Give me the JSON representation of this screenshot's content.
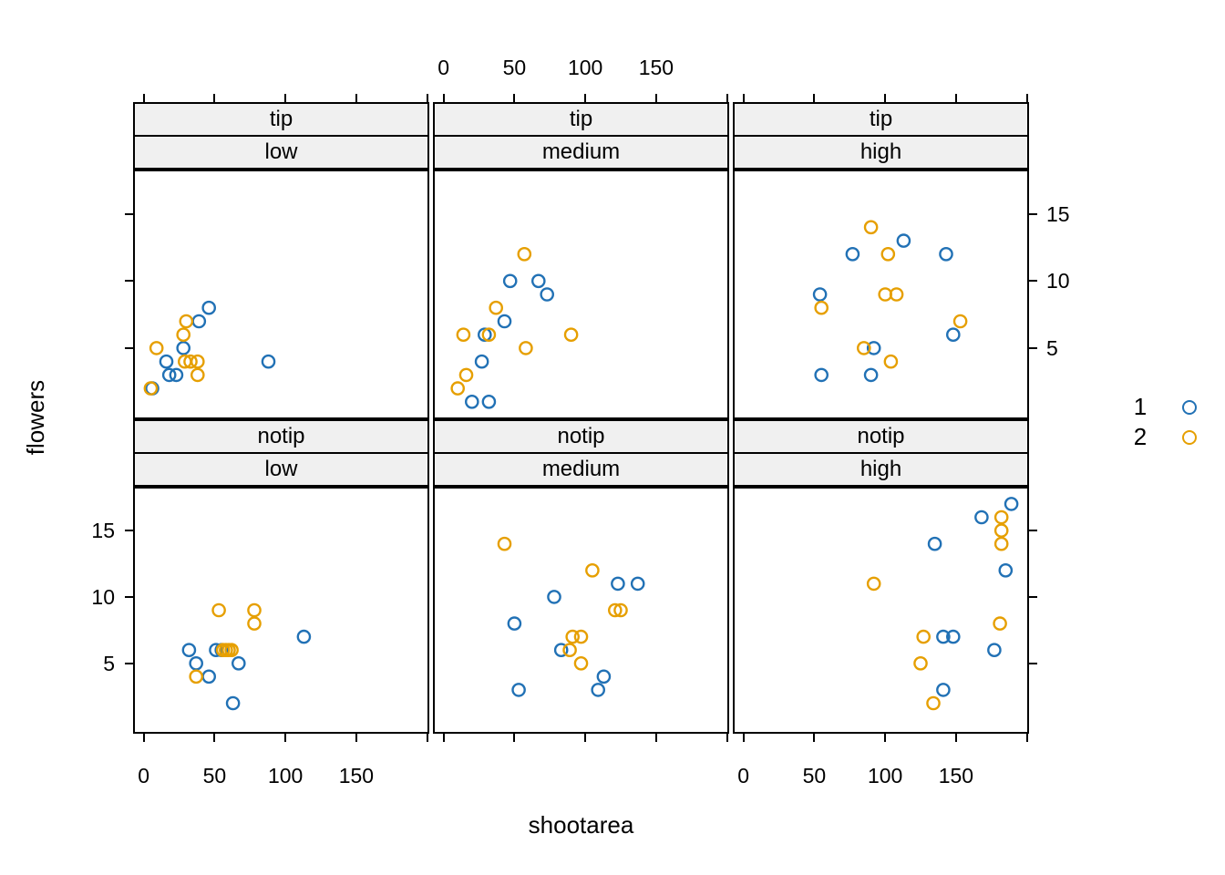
{
  "figure": {
    "background": "#ffffff"
  },
  "chart_data": {
    "type": "scatter",
    "title": "",
    "xlabel": "shootarea",
    "ylabel": "flowers",
    "xlim": [
      -7.5,
      201.5
    ],
    "ylim": [
      -0.3,
      18.3
    ],
    "x_ticks": [
      0,
      50,
      100,
      150,
      200
    ],
    "x_tick_labels": [
      "0",
      "50",
      "100",
      "150",
      ""
    ],
    "y_ticks": [
      5,
      10,
      15
    ],
    "y_tick_labels": [
      "5",
      "10",
      "15"
    ],
    "strip_bg": "#f0f0f0",
    "groups": [
      {
        "name": "1",
        "color": "#2171b5"
      },
      {
        "name": "2",
        "color": "#e69f00"
      }
    ],
    "legend": {
      "position": "right",
      "entries": [
        "1",
        "2"
      ]
    },
    "panels": [
      {
        "row": 0,
        "col": 0,
        "strip_labels": [
          "tip",
          "low"
        ],
        "series": [
          {
            "group": "1",
            "points": [
              [
                46,
                8
              ],
              [
                39,
                7
              ],
              [
                28,
                5
              ],
              [
                16,
                4
              ],
              [
                88,
                4
              ],
              [
                18,
                3
              ],
              [
                23,
                3
              ],
              [
                6,
                2
              ]
            ]
          },
          {
            "group": "2",
            "points": [
              [
                30,
                7
              ],
              [
                28,
                6
              ],
              [
                9,
                5
              ],
              [
                29,
                4
              ],
              [
                33,
                4
              ],
              [
                38,
                4
              ],
              [
                38,
                3
              ],
              [
                5,
                2
              ]
            ]
          }
        ]
      },
      {
        "row": 0,
        "col": 1,
        "strip_labels": [
          "tip",
          "medium"
        ],
        "series": [
          {
            "group": "1",
            "points": [
              [
                47,
                10
              ],
              [
                67,
                10
              ],
              [
                73,
                9
              ],
              [
                43,
                7
              ],
              [
                29,
                6
              ],
              [
                27,
                4
              ],
              [
                20,
                1
              ],
              [
                32,
                1
              ]
            ]
          },
          {
            "group": "2",
            "points": [
              [
                57,
                12
              ],
              [
                37,
                8
              ],
              [
                14,
                6
              ],
              [
                32,
                6
              ],
              [
                90,
                6
              ],
              [
                58,
                5
              ],
              [
                16,
                3
              ],
              [
                10,
                2
              ]
            ]
          }
        ]
      },
      {
        "row": 0,
        "col": 2,
        "strip_labels": [
          "tip",
          "high"
        ],
        "series": [
          {
            "group": "1",
            "points": [
              [
                113,
                13
              ],
              [
                77,
                12
              ],
              [
                143,
                12
              ],
              [
                54,
                9
              ],
              [
                148,
                6
              ],
              [
                92,
                5
              ],
              [
                55,
                3
              ],
              [
                90,
                3
              ]
            ]
          },
          {
            "group": "2",
            "points": [
              [
                90,
                14
              ],
              [
                102,
                12
              ],
              [
                100,
                9
              ],
              [
                108,
                9
              ],
              [
                55,
                8
              ],
              [
                153,
                7
              ],
              [
                85,
                5
              ],
              [
                104,
                4
              ]
            ]
          }
        ]
      },
      {
        "row": 1,
        "col": 0,
        "strip_labels": [
          "notip",
          "low"
        ],
        "series": [
          {
            "group": "1",
            "points": [
              [
                32,
                6
              ],
              [
                51,
                6
              ],
              [
                55,
                6
              ],
              [
                37,
                5
              ],
              [
                67,
                5
              ],
              [
                46,
                4
              ],
              [
                113,
                7
              ],
              [
                63,
                2
              ]
            ]
          },
          {
            "group": "2",
            "points": [
              [
                53,
                9
              ],
              [
                78,
                9
              ],
              [
                78,
                8
              ],
              [
                56,
                6
              ],
              [
                58,
                6
              ],
              [
                60,
                6
              ],
              [
                62,
                6
              ],
              [
                37,
                4
              ]
            ]
          }
        ]
      },
      {
        "row": 1,
        "col": 1,
        "strip_labels": [
          "notip",
          "medium"
        ],
        "series": [
          {
            "group": "1",
            "points": [
              [
                123,
                11
              ],
              [
                137,
                11
              ],
              [
                78,
                10
              ],
              [
                50,
                8
              ],
              [
                83,
                6
              ],
              [
                113,
                4
              ],
              [
                109,
                3
              ],
              [
                53,
                3
              ]
            ]
          },
          {
            "group": "2",
            "points": [
              [
                43,
                14
              ],
              [
                105,
                12
              ],
              [
                121,
                9
              ],
              [
                125,
                9
              ],
              [
                91,
                7
              ],
              [
                97,
                7
              ],
              [
                89,
                6
              ],
              [
                97,
                5
              ]
            ]
          }
        ]
      },
      {
        "row": 1,
        "col": 2,
        "strip_labels": [
          "notip",
          "high"
        ],
        "series": [
          {
            "group": "1",
            "points": [
              [
                189,
                17
              ],
              [
                168,
                16
              ],
              [
                135,
                14
              ],
              [
                185,
                12
              ],
              [
                141,
                7
              ],
              [
                148,
                7
              ],
              [
                177,
                6
              ],
              [
                141,
                3
              ]
            ]
          },
          {
            "group": "2",
            "points": [
              [
                182,
                16
              ],
              [
                182,
                15
              ],
              [
                182,
                14
              ],
              [
                92,
                11
              ],
              [
                181,
                8
              ],
              [
                127,
                7
              ],
              [
                125,
                5
              ],
              [
                134,
                2
              ]
            ]
          }
        ]
      }
    ]
  }
}
